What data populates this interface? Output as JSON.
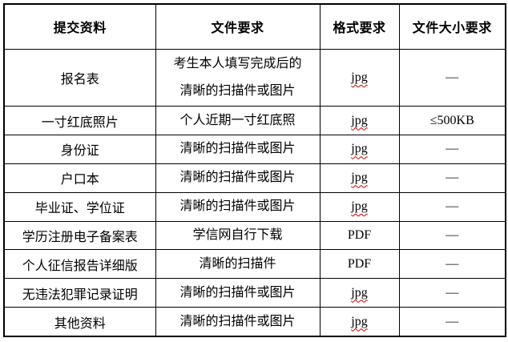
{
  "colors": {
    "border": "#000000",
    "text": "#000000",
    "spellcheck_underline": "#cc0000",
    "background": "#ffffff"
  },
  "table": {
    "headers": [
      "提交资料",
      "文件要求",
      "格式要求",
      "文件大小要求"
    ],
    "rows": [
      {
        "material": "报名表",
        "requirement": "考生本人填写完成后的\n清晰的扫描件或图片",
        "format": "jpg",
        "spellcheck_underline": true,
        "size": "—"
      },
      {
        "material": "一寸红底照片",
        "requirement": "个人近期一寸红底照",
        "format": "jpg",
        "spellcheck_underline": true,
        "size": "≤500KB"
      },
      {
        "material": "身份证",
        "requirement": "清晰的扫描件或图片",
        "format": "jpg",
        "spellcheck_underline": true,
        "size": "—"
      },
      {
        "material": "户口本",
        "requirement": "清晰的扫描件或图片",
        "format": "jpg",
        "spellcheck_underline": true,
        "size": "—"
      },
      {
        "material": "毕业证、学位证",
        "requirement": "清晰的扫描件或图片",
        "format": "jpg",
        "spellcheck_underline": true,
        "size": "—"
      },
      {
        "material": "学历注册电子备案表",
        "requirement": "学信网自行下载",
        "format": "PDF",
        "spellcheck_underline": false,
        "size": "—"
      },
      {
        "material": "个人征信报告详细版",
        "requirement": "清晰的扫描件",
        "format": "PDF",
        "spellcheck_underline": false,
        "size": "—"
      },
      {
        "material": "无违法犯罪记录证明",
        "requirement": "清晰的扫描件或图片",
        "format": "jpg",
        "spellcheck_underline": true,
        "size": "—"
      },
      {
        "material": "其他资料",
        "requirement": "清晰的扫描件或图片",
        "format": "jpg",
        "spellcheck_underline": true,
        "size": "—"
      }
    ]
  }
}
